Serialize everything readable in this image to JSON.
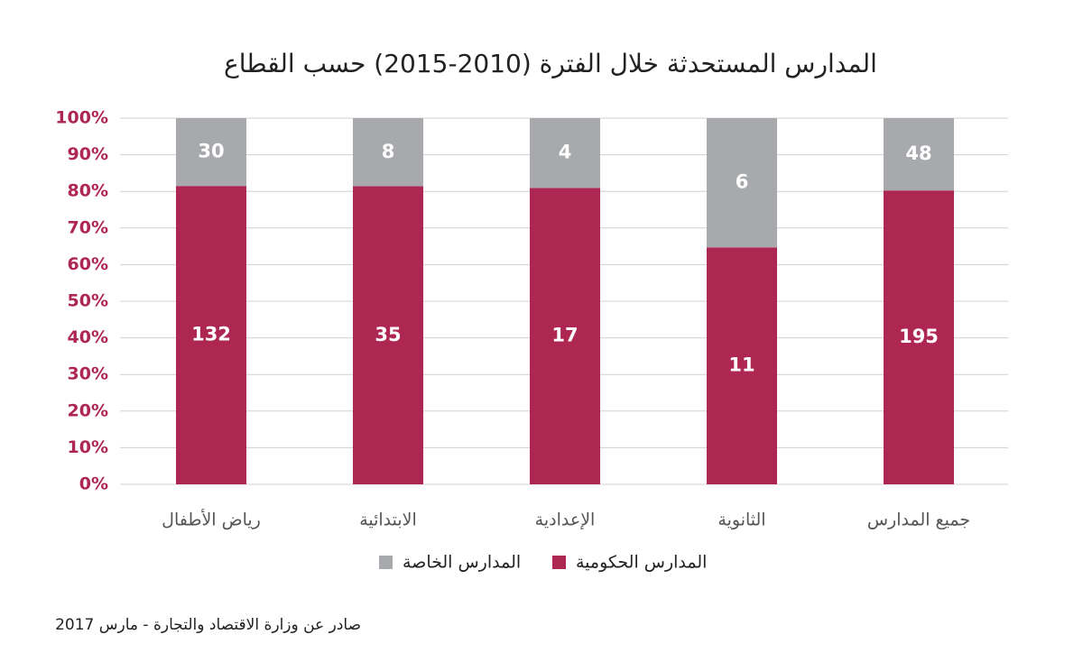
{
  "chart_data": {
    "type": "stacked_percent_bar",
    "title": "المدارس المستحدثة خلال الفترة (2010-2015) حسب القطاع",
    "categories": [
      "رياض الأطفال",
      "الابتدائية",
      "الإعدادية",
      "الثانوية",
      "جميع المدارس"
    ],
    "series": [
      {
        "name": "المدارس الحكومية",
        "color": "#ae2753",
        "values": [
          132,
          35,
          17,
          11,
          195
        ]
      },
      {
        "name": "المدارس الخاصة",
        "color": "#a7a9ac",
        "values": [
          30,
          8,
          4,
          6,
          48
        ]
      }
    ],
    "ylim": [
      0,
      100
    ],
    "yticks": [
      {
        "value": 0,
        "label": "0%"
      },
      {
        "value": 10,
        "label": "10%"
      },
      {
        "value": 20,
        "label": "20%"
      },
      {
        "value": 30,
        "label": "30%"
      },
      {
        "value": 40,
        "label": "40%"
      },
      {
        "value": 50,
        "label": "50%"
      },
      {
        "value": 60,
        "label": "60%"
      },
      {
        "value": 70,
        "label": "70%"
      },
      {
        "value": 80,
        "label": "80%"
      },
      {
        "value": 90,
        "label": "90%"
      },
      {
        "value": 100,
        "label": "100%"
      }
    ],
    "grid": true,
    "source": "صادر عن وزارة الاقتصاد والتجارة - مارس 2017"
  }
}
